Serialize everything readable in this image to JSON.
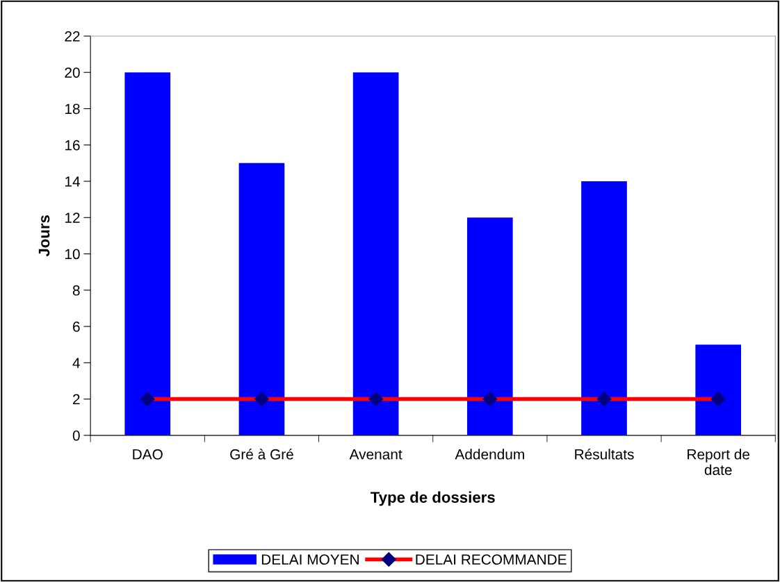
{
  "chart_data": {
    "type": "bar",
    "xlabel": "Type de dossiers",
    "ylabel": "Jours",
    "categories": [
      "DAO",
      "Gré à Gré",
      "Avenant",
      "Addendum",
      "Résultats",
      "Report de\ndate"
    ],
    "series": [
      {
        "name": "DELAI MOYEN",
        "color": "#0000ff",
        "values": [
          20,
          15,
          20,
          12,
          14,
          5
        ]
      },
      {
        "name": "DELAI RECOMMANDE",
        "type": "line",
        "color": "#ff0000",
        "marker": "diamond",
        "values": [
          2,
          2,
          2,
          2,
          2,
          2
        ]
      }
    ],
    "ylim": [
      0,
      22
    ],
    "yticks": [
      0,
      2,
      4,
      6,
      8,
      10,
      12,
      14,
      16,
      18,
      20,
      22
    ],
    "grid": false,
    "legend": "bottom"
  }
}
